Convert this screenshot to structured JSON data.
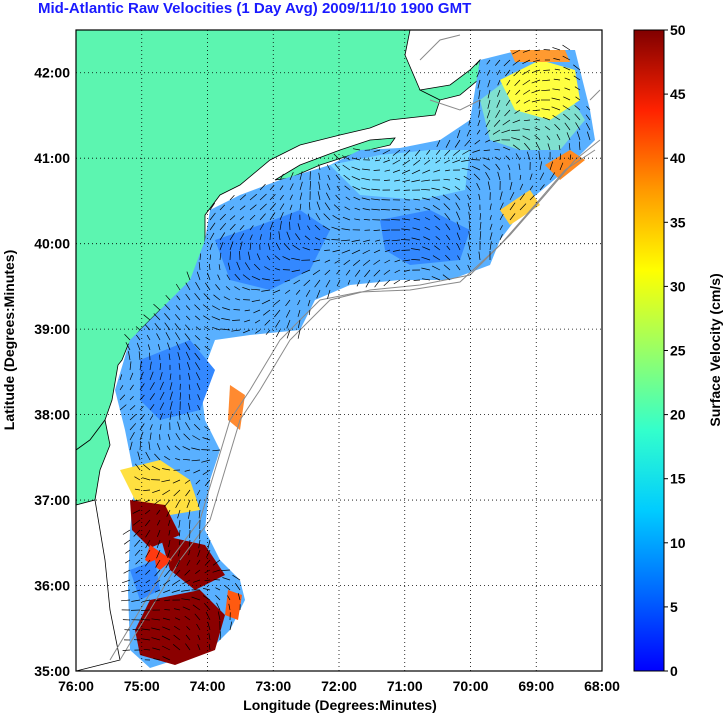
{
  "title": "Mid-Atlantic Raw Velocities (1 Day Avg) 2009/11/10 1900 GMT",
  "map": {
    "xlabel": "Longitude (Degrees:Minutes)",
    "ylabel": "Latitude (Degrees:Minutes)",
    "lon_range": [
      -76,
      -68
    ],
    "lat_range": [
      35,
      42.5
    ],
    "x_ticks": [
      "76:00",
      "75:00",
      "74:00",
      "73:00",
      "72:00",
      "71:00",
      "70:00",
      "69:00",
      "68:00"
    ],
    "y_ticks": [
      "35:00",
      "36:00",
      "37:00",
      "38:00",
      "39:00",
      "40:00",
      "41:00",
      "42:00"
    ],
    "land_color": "#5cf5b0",
    "grid": "dotted"
  },
  "colorbar": {
    "label": "Surface Velocity (cm/s)",
    "range": [
      0,
      50
    ],
    "ticks": [
      "0",
      "5",
      "10",
      "15",
      "20",
      "25",
      "30",
      "35",
      "40",
      "45",
      "50"
    ],
    "colormap": "jet"
  }
}
